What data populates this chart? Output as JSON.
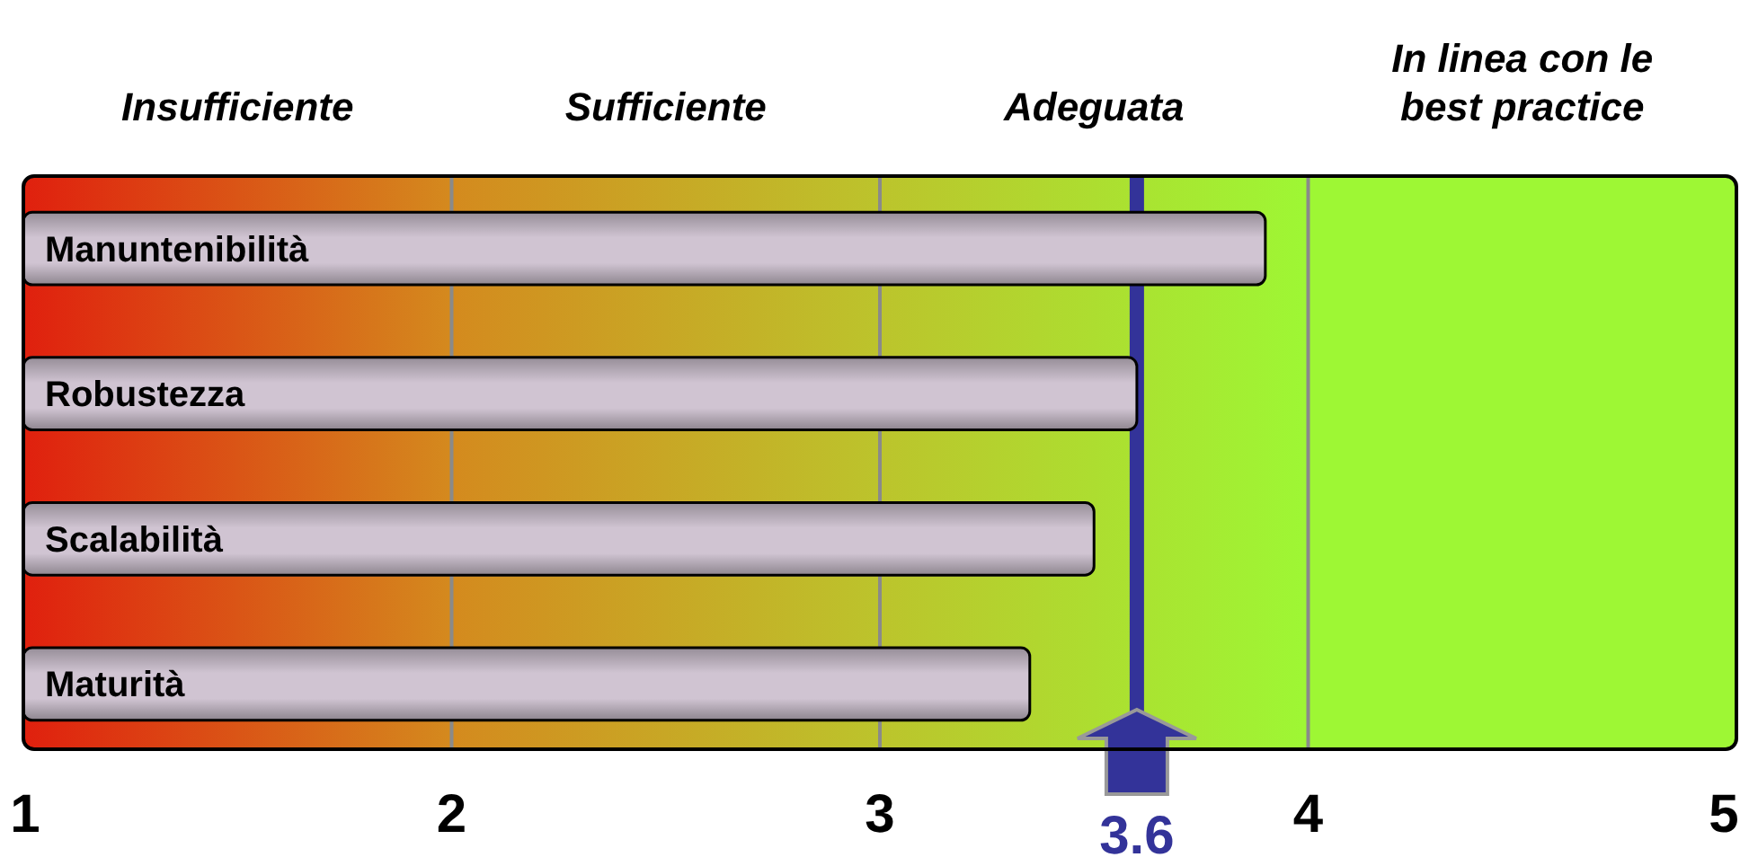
{
  "chart_data": {
    "type": "bar",
    "orientation": "horizontal",
    "categories": [
      "Manuntenibilità",
      "Robustezza",
      "Scalabilità",
      "Maturità"
    ],
    "values": [
      3.9,
      3.6,
      3.5,
      3.35
    ],
    "color": "#d0c4d2",
    "xlim": [
      1,
      5
    ],
    "xticks": [
      1,
      2,
      3,
      4,
      5
    ],
    "grid": "x",
    "bands": [
      {
        "axis": "x",
        "from": 1,
        "to": 2,
        "label": "Insufficiente",
        "color": "#e0200e"
      },
      {
        "axis": "x",
        "from": 2,
        "to": 3,
        "label": "Sufficiente",
        "color": "#d48a1e"
      },
      {
        "axis": "x",
        "from": 3,
        "to": 4,
        "label": "Adeguata",
        "color": "#bcc42c"
      },
      {
        "axis": "x",
        "from": 4,
        "to": 5,
        "label": "In linea con le best practice",
        "color": "#9ef734"
      }
    ],
    "ref_lines": [
      {
        "axis": "x",
        "value": 3.6,
        "label": "3.6",
        "color": "#333399"
      }
    ]
  }
}
